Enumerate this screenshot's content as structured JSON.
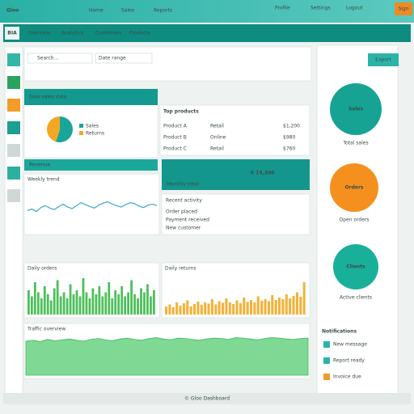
{
  "header": {
    "brand": "Gloo",
    "nav": [
      "Home",
      "Sales",
      "Reports"
    ],
    "actions": [
      "Profile",
      "Settings",
      "Logout"
    ],
    "button": "Sign"
  },
  "toolbar": {
    "brand": "BIA",
    "tabs": [
      "Overview",
      "Analytics",
      "Customers",
      "Products"
    ]
  },
  "filters": {
    "search": "Search...",
    "range": "Date range",
    "export": "Export"
  },
  "sales_card": {
    "title": "Gloo sales data",
    "legend": [
      {
        "name": "Sales",
        "value": 55,
        "color": "#1aa59a"
      },
      {
        "name": "Returns",
        "value": 45,
        "color": "#f5a623"
      }
    ]
  },
  "table": {
    "title": "Top products",
    "rows": [
      [
        "Product A",
        "Retail",
        "$1,200"
      ],
      [
        "Product B",
        "Online",
        "$980"
      ],
      [
        "Product C",
        "Retail",
        "$760"
      ]
    ]
  },
  "revenue": {
    "label": "Revenue",
    "value": "€ 15,300",
    "note": "Monthly total"
  },
  "line_chart": {
    "title": "Weekly trend",
    "color": "#3aa9c8",
    "ylim": [
      0,
      100
    ],
    "values": [
      42,
      45,
      40,
      48,
      52,
      47,
      44,
      50,
      55,
      49,
      46,
      52,
      58,
      54,
      50,
      47,
      53,
      57,
      60,
      55,
      52,
      49,
      54,
      58,
      56,
      51,
      48,
      53,
      55,
      52
    ]
  },
  "list": {
    "title": "Recent activity",
    "items": [
      "Order placed",
      "Payment received",
      "New customer"
    ]
  },
  "green_bars": {
    "title": "Daily orders",
    "color": "#4cbf5a",
    "ylim": [
      0,
      100
    ],
    "values": [
      60,
      45,
      80,
      55,
      40,
      70,
      50,
      35,
      65,
      85,
      45,
      55,
      40,
      75,
      50,
      60,
      45,
      90,
      55,
      40,
      65,
      50,
      70,
      45,
      55,
      80,
      40,
      60,
      50,
      70,
      45,
      55,
      85,
      50,
      40,
      65,
      55,
      75,
      45,
      60
    ]
  },
  "orange_bars": {
    "title": "Daily returns",
    "color": "#f2b23a",
    "ylim": [
      0,
      100
    ],
    "values": [
      20,
      25,
      18,
      30,
      22,
      28,
      35,
      20,
      26,
      32,
      24,
      30,
      27,
      38,
      25,
      33,
      29,
      40,
      30,
      26,
      35,
      28,
      42,
      31,
      36,
      30,
      45,
      34,
      38,
      33,
      48,
      36,
      42,
      38,
      50,
      40,
      46,
      55,
      44,
      80
    ]
  },
  "area_chart": {
    "title": "Traffic overview",
    "color": "#5fd07a",
    "ylim": [
      0,
      100
    ],
    "values": [
      78,
      80,
      77,
      82,
      79,
      81,
      83,
      80,
      78,
      82,
      84,
      81,
      79,
      83,
      85,
      82,
      80,
      84,
      86,
      83,
      81,
      85,
      84,
      82,
      80,
      83,
      85,
      84,
      82,
      86,
      85,
      83,
      81,
      84,
      86,
      85,
      83,
      82,
      84,
      85
    ]
  },
  "kpis": [
    {
      "label": "Sales",
      "sub": "Total sales",
      "color": "#16a394"
    },
    {
      "label": "Orders",
      "sub": "Open orders",
      "color": "#f5901e"
    },
    {
      "label": "Clients",
      "sub": "Active clients",
      "color": "#19b09a"
    }
  ],
  "side_list": {
    "title": "Notifications",
    "items": [
      "New message",
      "Report ready",
      "Invoice due"
    ]
  },
  "footer": {
    "text": "© Gloo Dashboard"
  }
}
